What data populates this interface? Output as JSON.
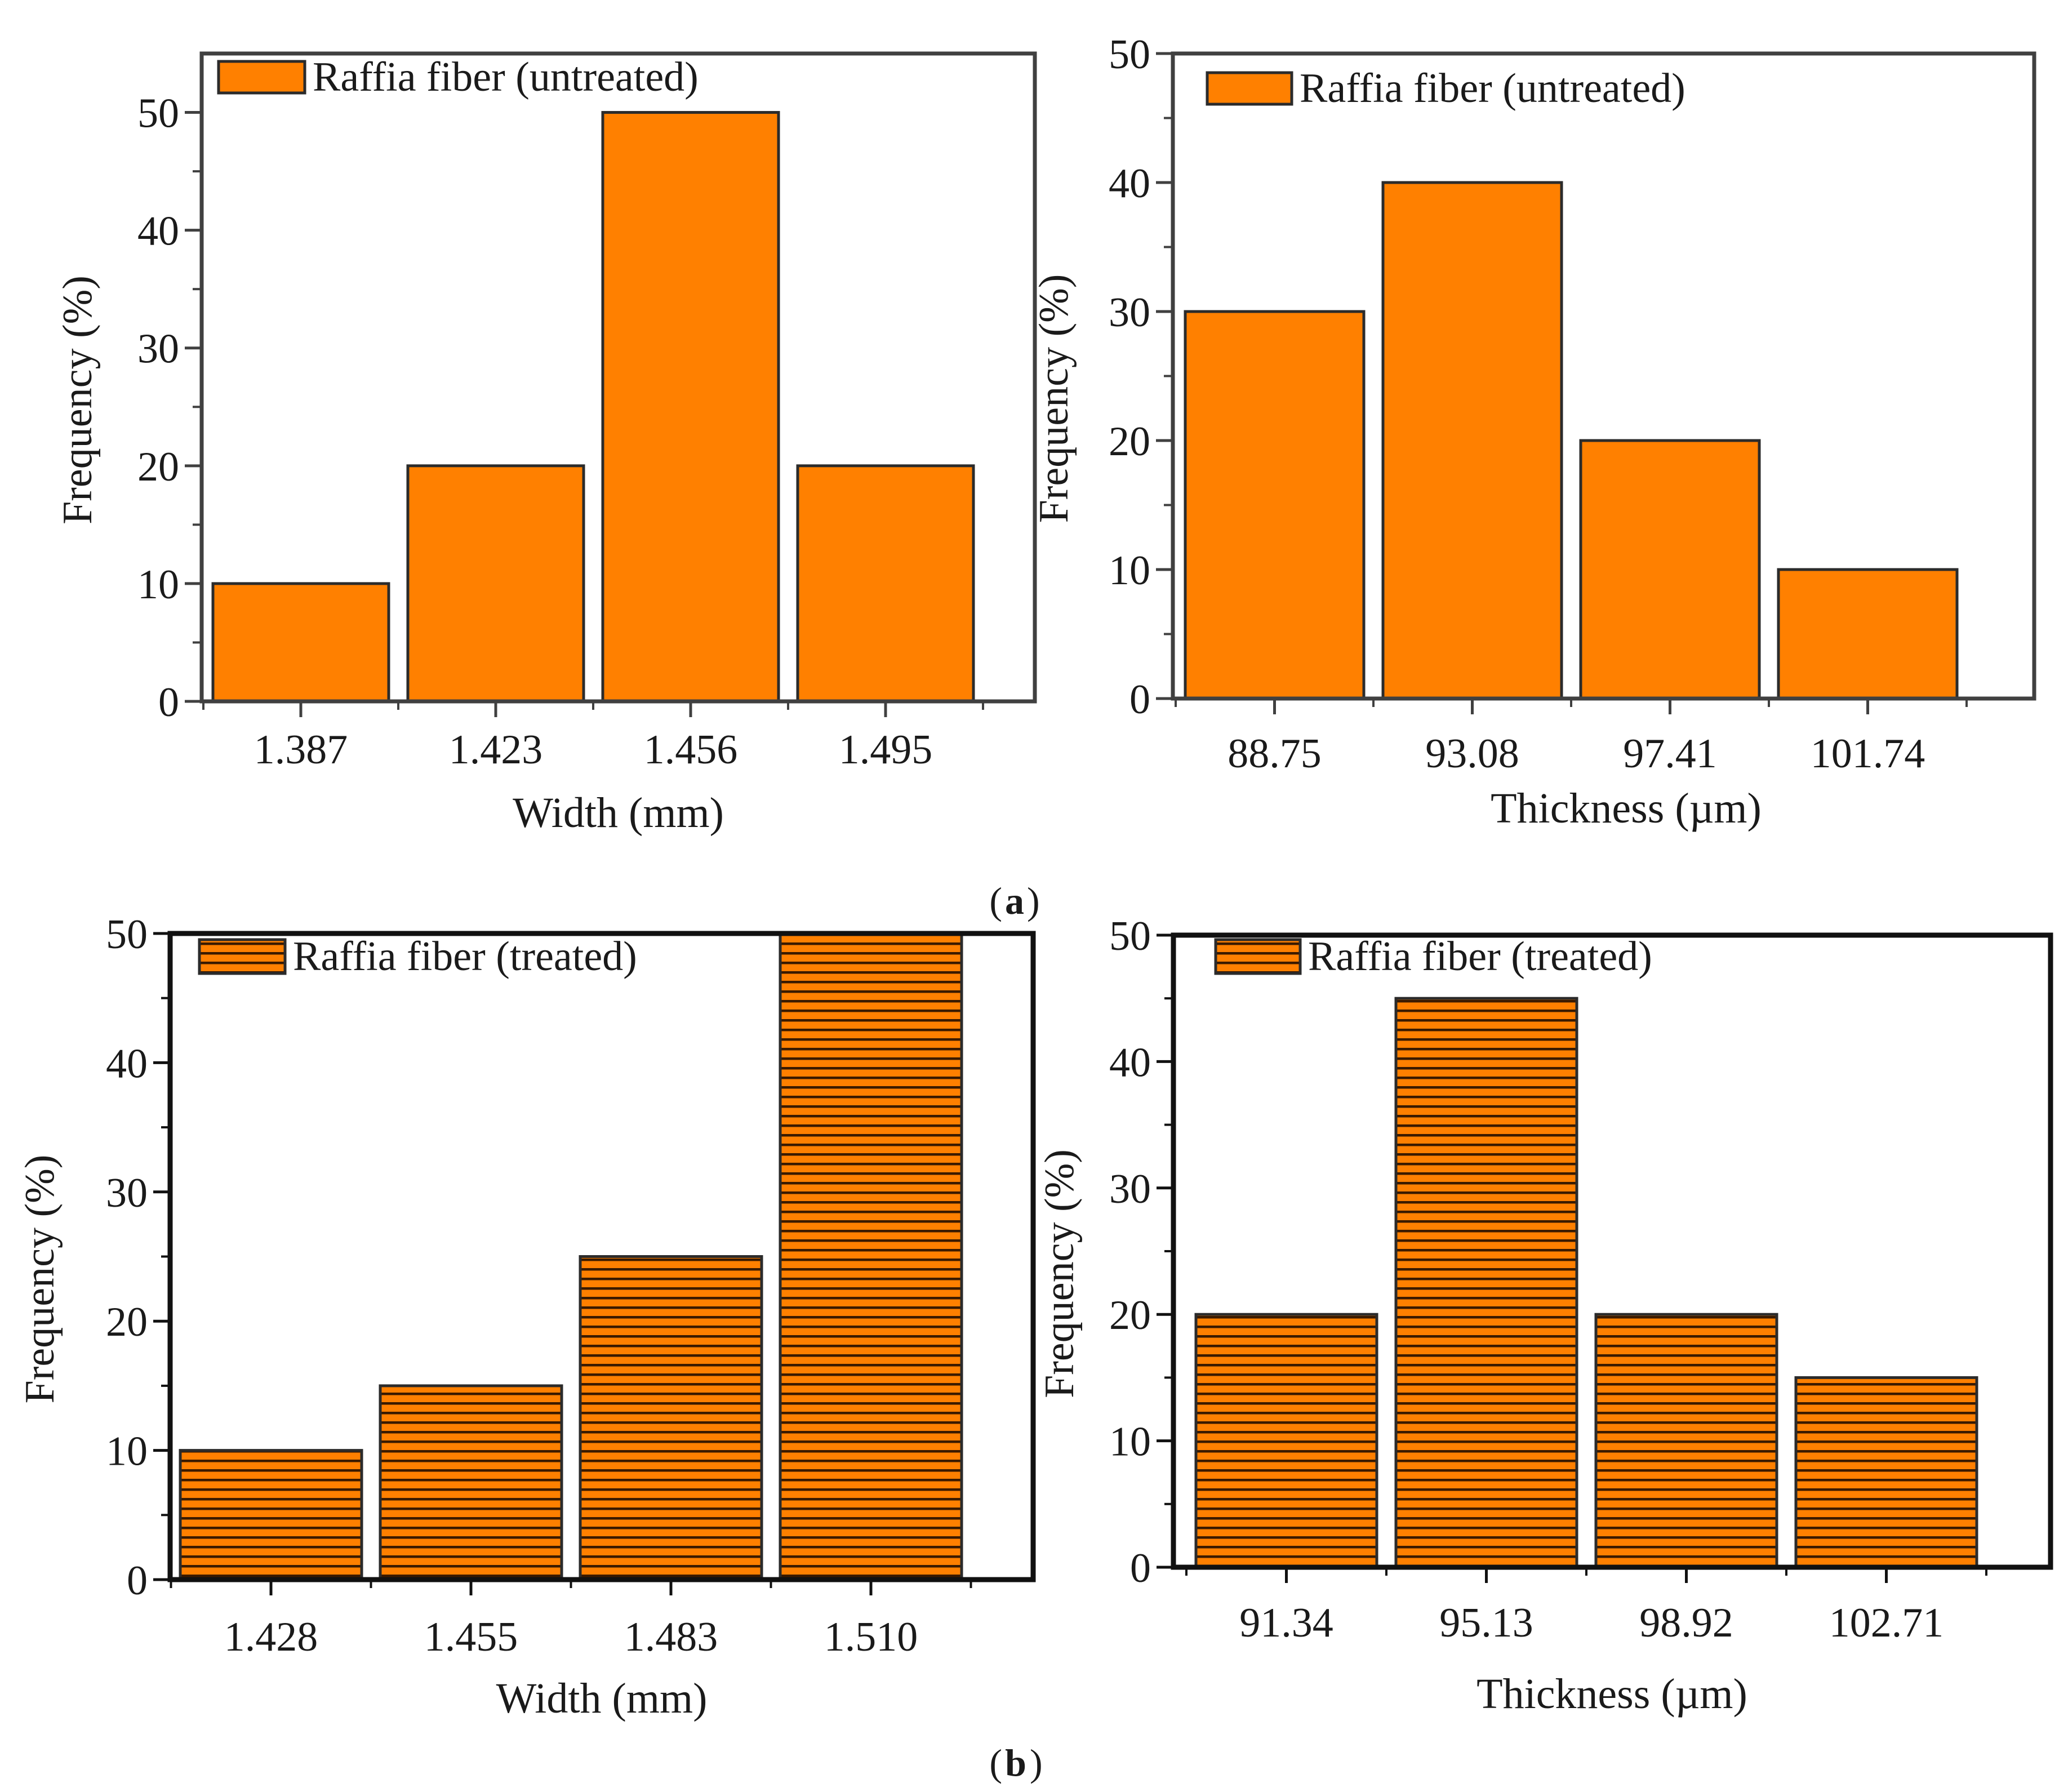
{
  "colors": {
    "bar_fill": "#ff8000",
    "bar_stroke": "#2b2b2b",
    "hatch_line": "#3a1a00",
    "frame": "#404040",
    "frame_bold": "#111111"
  },
  "panel_labels": {
    "a": "a",
    "b": "b"
  },
  "chart_data": [
    {
      "id": "untreated-width",
      "type": "bar",
      "legend": "Raffia fiber (untreated)",
      "categories": [
        "1.387",
        "1.423",
        "1.456",
        "1.495"
      ],
      "values": [
        10,
        20,
        50,
        20
      ],
      "xlabel": "Width (mm)",
      "ylabel": "Frequency (%)",
      "ylim": [
        0,
        55
      ],
      "yticks": [
        0,
        10,
        20,
        30,
        40,
        50
      ],
      "pattern": "solid"
    },
    {
      "id": "untreated-thickness",
      "type": "bar",
      "legend": "Raffia fiber (untreated)",
      "categories": [
        "88.75",
        "93.08",
        "97.41",
        "101.74"
      ],
      "values": [
        30,
        40,
        20,
        10
      ],
      "xlabel": "Thickness (µm)",
      "ylabel": "Frequency (%)",
      "ylim": [
        0,
        50
      ],
      "yticks": [
        0,
        10,
        20,
        30,
        40,
        50
      ],
      "pattern": "solid"
    },
    {
      "id": "treated-width",
      "type": "bar",
      "legend": "Raffia fiber (treated)",
      "categories": [
        "1.428",
        "1.455",
        "1.483",
        "1.510"
      ],
      "values": [
        10,
        15,
        25,
        50
      ],
      "xlabel": "Width (mm)",
      "ylabel": "Frequency (%)",
      "ylim": [
        0,
        50
      ],
      "yticks": [
        0,
        10,
        20,
        30,
        40,
        50
      ],
      "pattern": "hatched"
    },
    {
      "id": "treated-thickness",
      "type": "bar",
      "legend": "Raffia fiber (treated)",
      "categories": [
        "91.34",
        "95.13",
        "98.92",
        "102.71"
      ],
      "values": [
        20,
        45,
        20,
        15
      ],
      "xlabel": "Thickness (µm)",
      "ylabel": "Frequency (%)",
      "ylim": [
        0,
        50
      ],
      "yticks": [
        0,
        10,
        20,
        30,
        40,
        50
      ],
      "pattern": "hatched"
    }
  ]
}
